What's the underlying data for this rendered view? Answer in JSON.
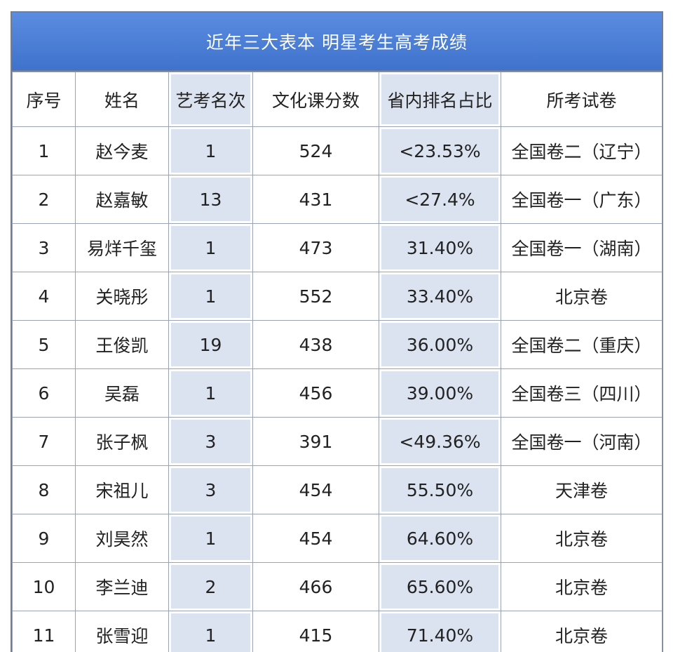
{
  "table": {
    "title": "近年三大表本 明星考生高考成绩",
    "header": [
      "序号",
      "姓名",
      "艺考名次",
      "文化课分数",
      "省内排名占比",
      "所考试卷"
    ],
    "rows": [
      [
        "1",
        "赵今麦",
        "1",
        "524",
        "<23.53%",
        "全国卷二（辽宁）"
      ],
      [
        "2",
        "赵嘉敏",
        "13",
        "431",
        "<27.4%",
        "全国卷一（广东）"
      ],
      [
        "3",
        "易烊千玺",
        "1",
        "473",
        "31.40%",
        "全国卷一（湖南）"
      ],
      [
        "4",
        "关晓彤",
        "1",
        "552",
        "33.40%",
        "北京卷"
      ],
      [
        "5",
        "王俊凯",
        "19",
        "438",
        "36.00%",
        "全国卷二（重庆）"
      ],
      [
        "6",
        "吴磊",
        "1",
        "456",
        "39.00%",
        "全国卷三（四川）"
      ],
      [
        "7",
        "张子枫",
        "3",
        "391",
        "<49.36%",
        "全国卷一（河南）"
      ],
      [
        "8",
        "宋祖儿",
        "3",
        "454",
        "55.50%",
        "天津卷"
      ],
      [
        "9",
        "刘昊然",
        "1",
        "454",
        "64.60%",
        "北京卷"
      ],
      [
        "10",
        "李兰迪",
        "2",
        "466",
        "65.60%",
        "北京卷"
      ],
      [
        "11",
        "张雪迎",
        "1",
        "415",
        "71.40%",
        "北京卷"
      ]
    ]
  }
}
